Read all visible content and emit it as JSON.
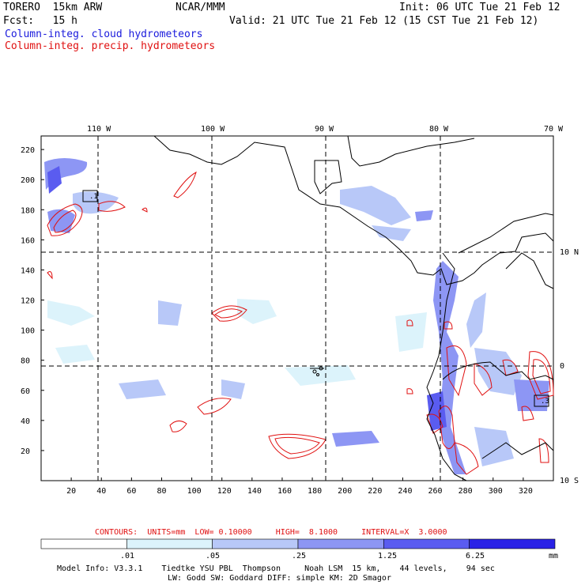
{
  "header": {
    "model": "TORERO  15km ARW",
    "center": "NCAR/MMM",
    "init": "Init: 06 UTC Tue 21 Feb 12",
    "fcst": "Fcst:   15 h",
    "valid": "Valid: 21 UTC Tue 21 Feb 12 (15 CST Tue 21 Feb 12)",
    "field1": "Column-integ. cloud hydrometeors",
    "field2": "Column-integ. precip. hydrometeors"
  },
  "colors": {
    "cloud_field": "#1a1adc",
    "precip_contours": "#e01010",
    "coast": "#000000"
  },
  "map": {
    "x_ticks": [
      "20",
      "40",
      "60",
      "80",
      "100",
      "120",
      "140",
      "160",
      "180",
      "200",
      "220",
      "240",
      "260",
      "280",
      "300",
      "320"
    ],
    "y_ticks": [
      "20",
      "40",
      "60",
      "80",
      "100",
      "120",
      "140",
      "160",
      "180",
      "200",
      "220"
    ],
    "lon_labels": [
      "110 W",
      "100 W",
      "90 W",
      "80 W",
      "70 W"
    ],
    "lat_labels": [
      "10 N",
      "0",
      "10 S"
    ],
    "box_labels": [
      ".1",
      ".3"
    ]
  },
  "contour_note": {
    "contours": "CONTOURS:  UNITS=mm  LOW= 0.10000     HIGH=  8.1000     INTERVAL=X  3.0000"
  },
  "colorbar": {
    "labels": [
      ".01",
      ".05",
      ".25",
      "1.25",
      "6.25"
    ],
    "unit": "mm",
    "colors": [
      "#ffffff",
      "#dcf3fb",
      "#b8c8f8",
      "#8d96f4",
      "#5a5cf0",
      "#2a22e6"
    ]
  },
  "footer": {
    "line1": "Model Info: V3.3.1    Tiedtke YSU PBL  Thompson     Noah LSM  15 km,    44 levels,    94 sec",
    "line2": "LW: Godd SW: Goddard DIFF: simple KM: 2D Smagor"
  }
}
